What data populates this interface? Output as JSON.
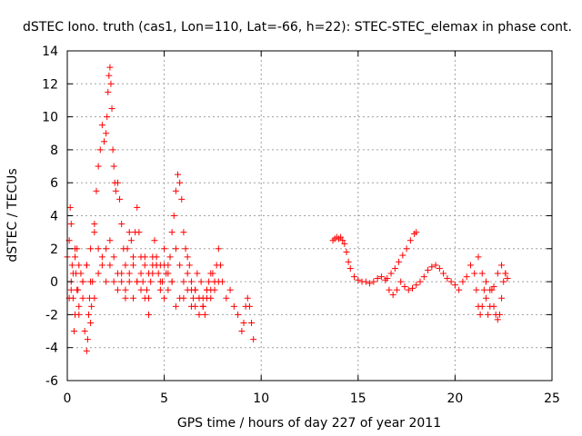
{
  "chart_data": {
    "type": "scatter",
    "title": "dSTEC Iono. truth (cas1, Lon=110, Lat=-66, h=22): STEC-STEC_elemax in phase cont.",
    "xlabel": "GPS time / hours of day 227 of year 2011",
    "ylabel": "dSTEC  / TECUs",
    "xlim": [
      0,
      25
    ],
    "ylim": [
      -6,
      14
    ],
    "xticks": [
      0,
      5,
      10,
      15,
      20,
      25
    ],
    "yticks": [
      -6,
      -4,
      -2,
      0,
      2,
      4,
      6,
      8,
      10,
      12,
      14
    ],
    "xtick_labels": [
      "0",
      "5",
      "10",
      "15",
      "20",
      "25"
    ],
    "ytick_labels": [
      "-6",
      "-4",
      "-2",
      "0",
      "2",
      "4",
      "6",
      "8",
      "10",
      "12",
      "14"
    ],
    "grid": true,
    "marker": "+",
    "color": "#ff0000",
    "series": [
      {
        "name": "dSTEC",
        "x": [
          0.0,
          0.1,
          0.15,
          0.2,
          0.25,
          0.3,
          0.35,
          0.4,
          0.45,
          0.5,
          0.55,
          0.6,
          0.7,
          0.8,
          0.9,
          1.0,
          1.05,
          1.1,
          1.15,
          1.2,
          1.25,
          1.3,
          1.4,
          1.5,
          1.6,
          1.7,
          1.8,
          1.9,
          2.0,
          2.05,
          2.1,
          2.15,
          2.2,
          2.25,
          2.3,
          2.35,
          2.4,
          2.45,
          2.5,
          2.6,
          2.7,
          2.8,
          2.9,
          3.0,
          3.1,
          3.2,
          3.3,
          3.4,
          3.5,
          3.6,
          3.7,
          3.8,
          3.9,
          4.0,
          4.1,
          4.2,
          4.3,
          4.4,
          4.5,
          4.6,
          4.7,
          4.8,
          4.9,
          5.0,
          5.1,
          5.2,
          5.3,
          5.4,
          5.5,
          5.6,
          5.7,
          5.8,
          5.9,
          6.0,
          6.1,
          6.2,
          6.3,
          6.4,
          6.5,
          6.6,
          6.7,
          6.8,
          6.9,
          7.0,
          7.1,
          7.2,
          7.3,
          7.4,
          7.5,
          7.6,
          7.7,
          7.8,
          7.9,
          8.0,
          8.2,
          8.4,
          8.6,
          8.8,
          9.0,
          9.1,
          9.2,
          9.3,
          9.4,
          9.5,
          9.6,
          0.1,
          0.2,
          0.3,
          0.4,
          0.5,
          0.6,
          0.8,
          1.0,
          1.2,
          1.4,
          1.6,
          1.8,
          2.0,
          2.2,
          2.4,
          2.6,
          2.8,
          3.0,
          3.2,
          3.4,
          3.6,
          3.8,
          4.0,
          4.2,
          4.4,
          4.6,
          4.8,
          5.0,
          5.2,
          5.4,
          5.6,
          5.8,
          6.0,
          6.2,
          6.4,
          6.6,
          6.8,
          7.0,
          7.2,
          7.4,
          7.6,
          0.2,
          0.4,
          0.6,
          0.8,
          1.0,
          1.2,
          1.4,
          1.6,
          1.8,
          2.0,
          2.2,
          2.4,
          2.6,
          2.8,
          3.0,
          3.2,
          3.4,
          3.6,
          3.8,
          4.0,
          4.2,
          4.4,
          4.6,
          4.8,
          5.0,
          5.2,
          5.4,
          5.6,
          5.8,
          6.0,
          6.2,
          6.4,
          6.6,
          6.8,
          7.0,
          7.2,
          7.4,
          7.6,
          7.8,
          13.7,
          13.8,
          13.9,
          14.0,
          14.1,
          14.2,
          14.3,
          14.4,
          14.5,
          14.6,
          14.8,
          15.0,
          15.2,
          15.4,
          15.6,
          15.8,
          16.0,
          16.2,
          16.4,
          16.6,
          16.8,
          17.0,
          17.2,
          17.4,
          17.6,
          17.8,
          18.0,
          18.2,
          18.4,
          18.6,
          18.8,
          19.0,
          19.2,
          19.4,
          19.6,
          19.8,
          20.0,
          20.2,
          20.4,
          20.6,
          20.8,
          21.0,
          21.1,
          21.2,
          21.3,
          21.4,
          21.5,
          21.6,
          21.7,
          21.8,
          21.9,
          22.0,
          22.1,
          22.2,
          22.3,
          22.4,
          22.5,
          22.6,
          22.7,
          16.5,
          16.7,
          16.9,
          17.1,
          17.3,
          17.5,
          17.7,
          17.9,
          18.0,
          21.2,
          21.4,
          21.6,
          21.8,
          22.0,
          22.2,
          22.4,
          22.6
        ],
        "y": [
          1.5,
          2.5,
          4.5,
          3.5,
          1.0,
          -1.0,
          -3.0,
          -2.0,
          0.5,
          2.0,
          -0.5,
          -2.0,
          0.5,
          -1.0,
          -3.0,
          -4.2,
          -3.5,
          -2.0,
          -1.0,
          -2.5,
          -1.5,
          0.0,
          3.5,
          5.5,
          7.0,
          8.0,
          9.5,
          8.5,
          9.0,
          10.0,
          11.5,
          12.5,
          13.0,
          12.0,
          10.5,
          8.0,
          7.0,
          6.0,
          5.5,
          6.0,
          5.0,
          3.5,
          2.0,
          1.0,
          2.0,
          3.0,
          2.5,
          1.5,
          3.0,
          4.5,
          3.0,
          1.5,
          0.0,
          -1.0,
          -0.5,
          -2.0,
          0.0,
          1.5,
          2.5,
          1.0,
          0.5,
          1.0,
          0.0,
          1.0,
          0.5,
          -0.5,
          1.5,
          3.0,
          4.0,
          5.5,
          6.5,
          6.0,
          5.0,
          3.0,
          2.0,
          1.5,
          1.0,
          0.0,
          -1.0,
          -0.5,
          0.5,
          -1.0,
          0.0,
          -1.5,
          -2.0,
          -1.0,
          0.0,
          -0.5,
          0.5,
          0.0,
          1.0,
          2.0,
          1.0,
          0.0,
          -1.0,
          -0.5,
          -1.5,
          -2.0,
          -3.0,
          -2.5,
          -1.5,
          -1.0,
          -1.5,
          -2.5,
          -3.5,
          -1.0,
          -0.5,
          0.5,
          1.5,
          -0.5,
          -1.5,
          0.0,
          1.0,
          2.0,
          3.0,
          2.0,
          1.0,
          0.0,
          2.5,
          1.5,
          0.5,
          0.0,
          -0.5,
          0.5,
          -1.0,
          0.0,
          -0.5,
          1.0,
          -1.0,
          0.5,
          1.0,
          -0.5,
          -1.0,
          0.5,
          0.0,
          -1.5,
          -1.0,
          -1.0,
          0.5,
          -1.5,
          -0.5,
          -2.0,
          -1.5,
          -0.5,
          0.5,
          0.0,
          0.0,
          2.0,
          1.0,
          0.0,
          1.0,
          0.0,
          -1.0,
          0.5,
          1.5,
          2.0,
          1.0,
          0.0,
          -0.5,
          0.5,
          -1.0,
          0.0,
          1.0,
          0.0,
          0.5,
          1.5,
          0.5,
          1.0,
          1.5,
          0.0,
          2.0,
          1.0,
          0.0,
          2.0,
          1.0,
          0.0,
          -0.5,
          -0.5,
          -1.5,
          -1.0,
          -1.0,
          -0.5,
          -1.0,
          -0.5,
          0.0,
          2.5,
          2.6,
          2.7,
          2.6,
          2.7,
          2.5,
          2.3,
          1.8,
          1.2,
          0.8,
          0.3,
          0.1,
          0.0,
          0.0,
          -0.1,
          0.0,
          0.2,
          0.3,
          0.1,
          -0.5,
          -0.8,
          -0.5,
          0.0,
          -0.3,
          -0.5,
          -0.4,
          -0.2,
          0.0,
          0.3,
          0.7,
          0.9,
          1.0,
          0.8,
          0.5,
          0.2,
          0.0,
          -0.2,
          -0.5,
          0.0,
          0.3,
          1.0,
          0.5,
          -0.5,
          -1.5,
          -2.0,
          -1.5,
          -0.5,
          -1.0,
          -2.0,
          -1.5,
          -0.5,
          -1.5,
          -2.0,
          -2.3,
          -2.0,
          -1.0,
          0.0,
          0.5,
          0.2,
          0.2,
          0.5,
          0.8,
          1.2,
          1.6,
          2.0,
          2.5,
          2.9,
          3.0,
          1.5,
          0.5,
          0.0,
          -0.5,
          -0.3,
          0.5,
          1.0,
          0.5
        ]
      }
    ]
  }
}
